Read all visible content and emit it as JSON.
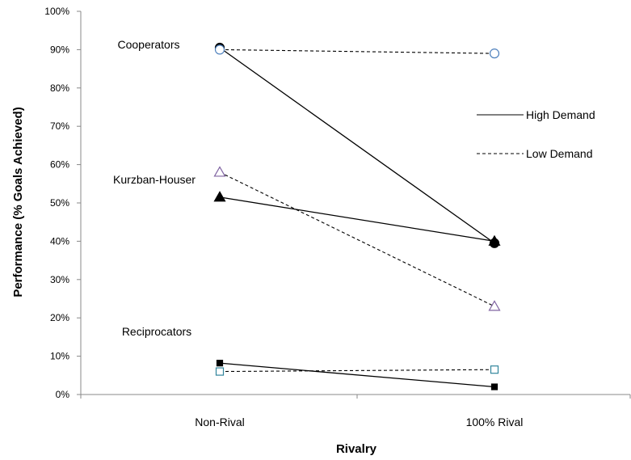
{
  "chart_data": {
    "type": "line",
    "title": "",
    "xlabel": "Rivalry",
    "ylabel": "Performance (% Goals Achieved)",
    "ylim": [
      0,
      100
    ],
    "yticks": [
      "0%",
      "10%",
      "20%",
      "30%",
      "40%",
      "50%",
      "60%",
      "70%",
      "80%",
      "90%",
      "100%"
    ],
    "categories": [
      "Non-Rival",
      "100% Rival"
    ],
    "grid": false,
    "legend_position": "right",
    "legend": [
      {
        "label": "High Demand",
        "style": "solid"
      },
      {
        "label": "Low Demand",
        "style": "dashed"
      }
    ],
    "group_labels": [
      "Cooperators",
      "Kurzban-Houser",
      "Reciprocators"
    ],
    "series": [
      {
        "group": "Cooperators",
        "demand": "High Demand",
        "style": "solid",
        "marker": "circle",
        "filled": true,
        "color": "#000000",
        "values": [
          90.5,
          39.5
        ]
      },
      {
        "group": "Cooperators",
        "demand": "Low Demand",
        "style": "dashed",
        "marker": "circle",
        "filled": false,
        "color": "#4f81bd",
        "values": [
          90,
          89
        ]
      },
      {
        "group": "Kurzban-Houser",
        "demand": "High Demand",
        "style": "solid",
        "marker": "triangle",
        "filled": true,
        "color": "#000000",
        "values": [
          51.5,
          40
        ]
      },
      {
        "group": "Kurzban-Houser",
        "demand": "Low Demand",
        "style": "dashed",
        "marker": "triangle",
        "filled": false,
        "color": "#8064a2",
        "values": [
          58,
          23
        ]
      },
      {
        "group": "Reciprocators",
        "demand": "High Demand",
        "style": "solid",
        "marker": "square",
        "filled": true,
        "color": "#000000",
        "values": [
          8.2,
          2
        ]
      },
      {
        "group": "Reciprocators",
        "demand": "Low Demand",
        "style": "dashed",
        "marker": "square",
        "filled": false,
        "color": "#31859c",
        "values": [
          6,
          6.5
        ]
      }
    ]
  }
}
